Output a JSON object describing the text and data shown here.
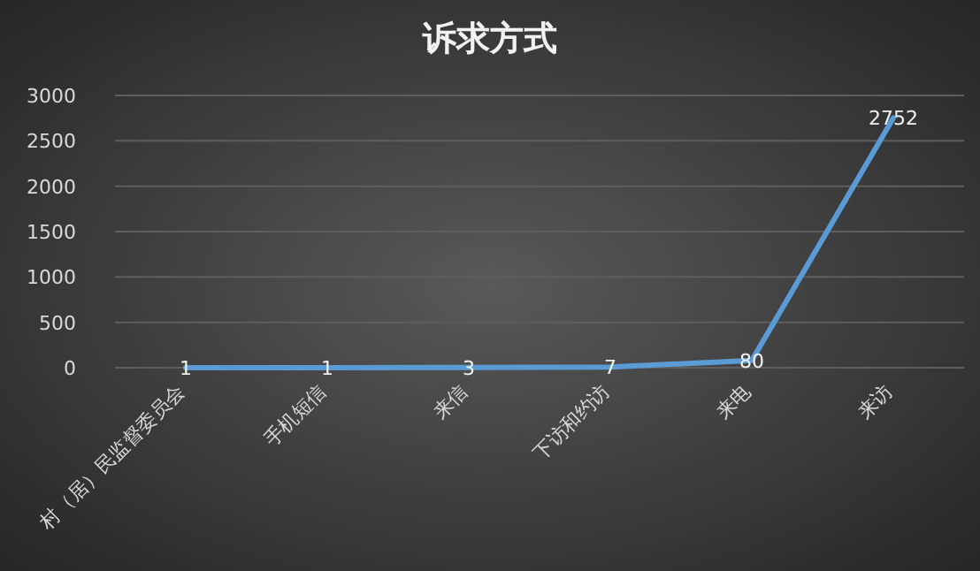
{
  "chart_data": {
    "type": "line",
    "title": "诉求方式",
    "categories": [
      "村（居）民监督委员会",
      "手机短信",
      "来信",
      "下访和约访",
      "来电",
      "来访"
    ],
    "series": [
      {
        "color": "#5b9bd5",
        "values": [
          1,
          1,
          3,
          7,
          80,
          2752
        ]
      }
    ],
    "ylim": [
      0,
      3000
    ],
    "yticks": [
      0,
      500,
      1000,
      1500,
      2000,
      2500,
      3000
    ],
    "grid": "y",
    "data_labels": true,
    "marker": "none",
    "line_style": "solid"
  }
}
